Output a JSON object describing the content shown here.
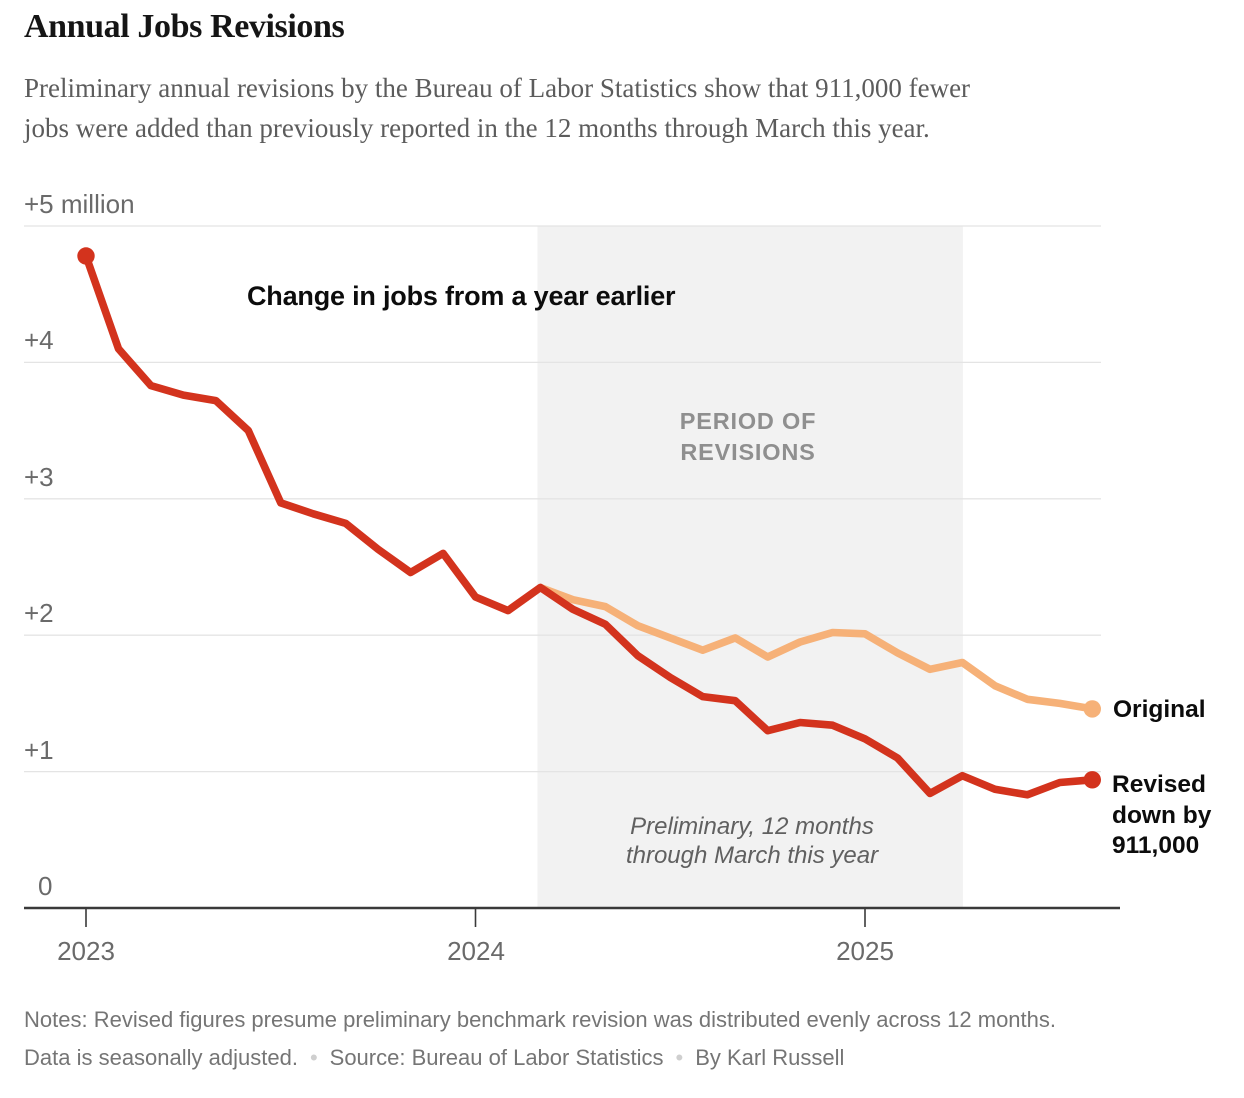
{
  "header": {
    "title": "Annual Jobs Revisions",
    "subtitle_line1": "Preliminary annual revisions by the Bureau of Labor Statistics show that 911,000 fewer",
    "subtitle_line2": "jobs were added than previously reported in the 12 months through March this year."
  },
  "chart_data": {
    "type": "line",
    "title": "Change in jobs from a year earlier",
    "units": "millions of jobs, change from a year earlier",
    "x": [
      "Jan 2023",
      "Feb 2023",
      "Mar 2023",
      "Apr 2023",
      "May 2023",
      "Jun 2023",
      "Jul 2023",
      "Aug 2023",
      "Sep 2023",
      "Oct 2023",
      "Nov 2023",
      "Dec 2023",
      "Jan 2024",
      "Feb 2024",
      "Mar 2024",
      "Apr 2024",
      "May 2024",
      "Jun 2024",
      "Jul 2024",
      "Aug 2024",
      "Sep 2024",
      "Oct 2024",
      "Nov 2024",
      "Dec 2024",
      "Jan 2025",
      "Feb 2025",
      "Mar 2025",
      "Apr 2025",
      "May 2025",
      "Jun 2025",
      "Jul 2025",
      "Aug 2025"
    ],
    "series": [
      {
        "name": "Original",
        "color": "#f6b178",
        "values": [
          4.78,
          4.1,
          3.83,
          3.76,
          3.72,
          3.5,
          2.97,
          2.89,
          2.82,
          2.63,
          2.46,
          2.6,
          2.28,
          2.18,
          2.35,
          2.26,
          2.21,
          2.07,
          1.98,
          1.89,
          1.98,
          1.84,
          1.95,
          2.02,
          2.01,
          1.87,
          1.75,
          1.8,
          1.63,
          1.53,
          1.5,
          1.46
        ]
      },
      {
        "name": "Revised",
        "color": "#d3331d",
        "values": [
          4.78,
          4.1,
          3.83,
          3.76,
          3.72,
          3.5,
          2.97,
          2.89,
          2.82,
          2.63,
          2.46,
          2.6,
          2.28,
          2.18,
          2.35,
          2.19,
          2.08,
          1.85,
          1.69,
          1.55,
          1.52,
          1.3,
          1.36,
          1.34,
          1.24,
          1.1,
          0.84,
          0.97,
          0.87,
          0.83,
          0.92,
          0.94
        ]
      }
    ],
    "diverge_index": 14,
    "ylim": [
      0,
      5
    ],
    "yticks": [
      {
        "value": 5,
        "label": "+5 million"
      },
      {
        "value": 4,
        "label": "+4"
      },
      {
        "value": 3,
        "label": "+3"
      },
      {
        "value": 2,
        "label": "+2"
      },
      {
        "value": 1,
        "label": "+1"
      },
      {
        "value": 0,
        "label": "0"
      }
    ],
    "xticks": [
      {
        "index": 0,
        "label": "2023"
      },
      {
        "index": 12,
        "label": "2024"
      },
      {
        "index": 24,
        "label": "2025"
      }
    ],
    "grid": true,
    "band": {
      "from_index": 14,
      "to_index": 27,
      "color": "#f2f2f2",
      "label_line1": "PERIOD OF",
      "label_line2": "REVISIONS",
      "note_line1": "Preliminary, 12 months",
      "note_line2": "through March this year"
    },
    "end_labels": {
      "original": "Original",
      "revised_line1": "Revised",
      "revised_line2": "down by",
      "revised_line3": "911,000"
    }
  },
  "footer": {
    "line1": "Notes: Revised figures presume preliminary benchmark revision was distributed evenly across 12 months.",
    "line2_part1": "Data is seasonally adjusted.",
    "bullet": "•",
    "line2_part2": "Source: Bureau of Labor Statistics",
    "line2_part3": "By Karl Russell"
  }
}
